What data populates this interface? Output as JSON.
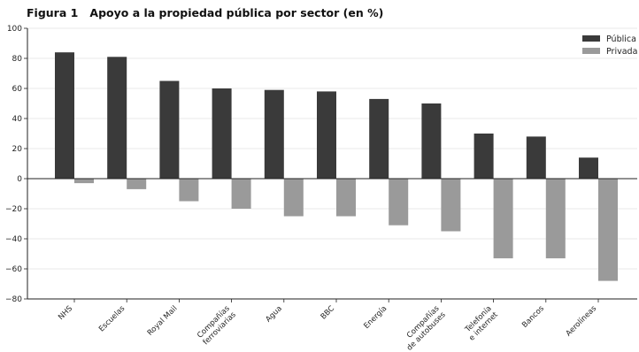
{
  "figure": {
    "label": "Figura 1",
    "title": "Apoyo a la propiedad pública por sector (en %)"
  },
  "chart_data": {
    "type": "bar",
    "title": "Apoyo a la propiedad pública por sector (en %)",
    "xlabel": "",
    "ylabel": "",
    "ylim": [
      -80,
      100
    ],
    "yticks": [
      -80,
      -60,
      -40,
      -20,
      0,
      20,
      40,
      60,
      80,
      100
    ],
    "grid": true,
    "legend_position": "top-right",
    "categories": [
      [
        "NHS"
      ],
      [
        "Escuelas"
      ],
      [
        "Royal Mail"
      ],
      [
        "Compañías",
        "ferroviarias"
      ],
      [
        "Agua"
      ],
      [
        "BBC"
      ],
      [
        "Energía"
      ],
      [
        "Compañías",
        "de autobuses"
      ],
      [
        "Telefonía",
        "e internet"
      ],
      [
        "Bancos"
      ],
      [
        "Aerolíneas"
      ]
    ],
    "series": [
      {
        "name": "Pública",
        "color": "#3a3a3a",
        "values": [
          84,
          81,
          65,
          60,
          59,
          58,
          53,
          50,
          30,
          28,
          14
        ]
      },
      {
        "name": "Privada",
        "color": "#9a9a9a",
        "values": [
          -3,
          -7,
          -15,
          -20,
          -25,
          -25,
          -31,
          -35,
          -53,
          -53,
          -68
        ]
      }
    ]
  }
}
